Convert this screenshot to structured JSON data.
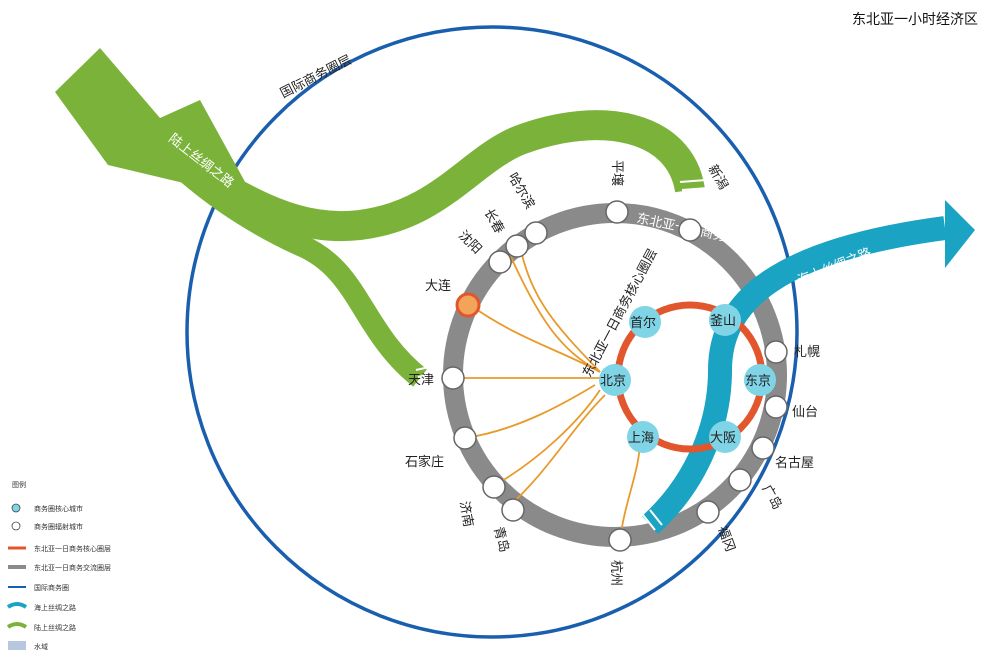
{
  "title": "东北亚一小时经济区",
  "outer_ring_label": "国际商务圈层",
  "middle_ring_label": "东北亚一日商务交流圈层",
  "inner_ring_label": "东北亚一日商务核心圈层",
  "land_route_label": "陆上丝绸之路",
  "sea_route_label": "海上丝绸之路",
  "core_cities": [
    "首尔",
    "釜山",
    "北京",
    "东京",
    "上海",
    "大阪"
  ],
  "ring_cities": [
    "平壤",
    "哈尔滨",
    "长春",
    "沈阳",
    "大连",
    "天津",
    "石家庄",
    "济南",
    "青岛",
    "杭州",
    "福冈",
    "广岛",
    "名古屋",
    "仙台",
    "札幌",
    "新潟"
  ],
  "legend": {
    "title": "图例",
    "items": [
      "商务圈核心城市",
      "商务圈辐射城市",
      "东北亚一日商务核心圈层",
      "东北亚一日商务交流圈层",
      "国际商务圈",
      "海上丝绸之路",
      "陆上丝绸之路",
      "水域"
    ]
  },
  "colors": {
    "outer_ring": "#1a5fae",
    "middle_ring": "#8a8a8a",
    "inner_ring": "#e2562e",
    "land_route": "#7bb33a",
    "sea_route": "#1aa3c2",
    "connector": "#e89a2b",
    "core_city": "#7fd4e6",
    "highlight_city": "#f2a45a"
  }
}
